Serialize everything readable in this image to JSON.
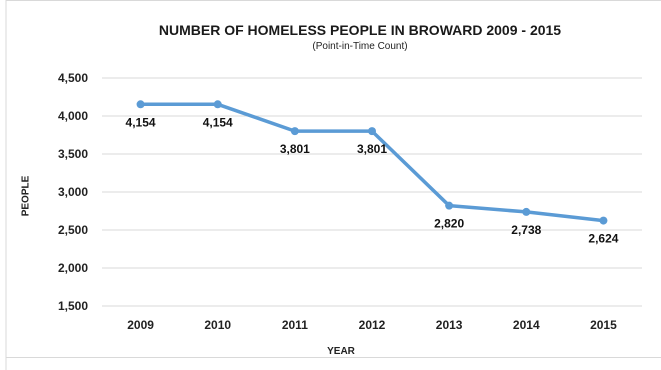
{
  "chart_data": {
    "type": "line",
    "title": "NUMBER OF HOMELESS PEOPLE IN BROWARD 2009 - 2015",
    "subtitle": "(Point-in-Time Count)",
    "xlabel": "YEAR",
    "ylabel": "PEOPLE",
    "categories": [
      "2009",
      "2010",
      "2011",
      "2012",
      "2013",
      "2014",
      "2015"
    ],
    "series": [
      {
        "values": [
          4154,
          4154,
          3801,
          3801,
          2820,
          2738,
          2624
        ],
        "labels": [
          "4,154",
          "4,154",
          "3,801",
          "3,801",
          "2,820",
          "2,738",
          "2,624"
        ]
      }
    ],
    "ylim": [
      1500,
      4500
    ],
    "yticks": [
      "1,500",
      "2,000",
      "2,500",
      "3,000",
      "3,500",
      "4,000",
      "4,500"
    ],
    "grid": true,
    "colors": {
      "line": "#5b9bd5",
      "grid": "#d9d9d9"
    }
  }
}
